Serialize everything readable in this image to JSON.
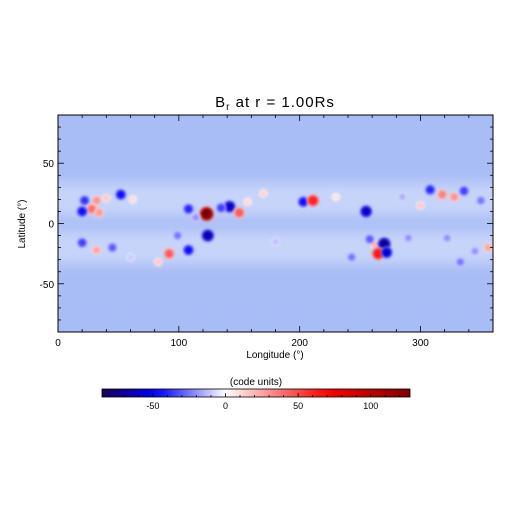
{
  "chart_data": {
    "type": "heatmap",
    "title": "B",
    "title_subscript": "r",
    "title_suffix": " at r = 1.00Rs",
    "xlabel": "Longitude (°)",
    "ylabel": "Latitude (°)",
    "xlim": [
      0,
      360
    ],
    "ylim": [
      -90,
      90
    ],
    "x_ticks": [
      0,
      100,
      200,
      300
    ],
    "y_ticks": [
      -50,
      0,
      50
    ],
    "colorbar": {
      "label": "(code units)",
      "range": [
        -85,
        127
      ],
      "ticks": [
        -50,
        0,
        50,
        100
      ],
      "colormap": [
        "#1a005a",
        "#0000ff",
        "#ffffff",
        "#ff0000",
        "#7f0000"
      ]
    },
    "background_color": "#a8bcf5",
    "band_color": "#c6d4fa",
    "features": [
      {
        "lon": 22,
        "lat": 19,
        "value": -38
      },
      {
        "lon": 28,
        "lat": 12,
        "value": 40
      },
      {
        "lon": 32,
        "lat": 19,
        "value": 30
      },
      {
        "lon": 20,
        "lat": 10,
        "value": -45
      },
      {
        "lon": 34,
        "lat": 9,
        "value": 28
      },
      {
        "lon": 52,
        "lat": 24,
        "value": -45
      },
      {
        "lon": 62,
        "lat": 20,
        "value": 10
      },
      {
        "lon": 40,
        "lat": 21,
        "value": 15
      },
      {
        "lon": 108,
        "lat": 12,
        "value": -40
      },
      {
        "lon": 123,
        "lat": 8,
        "value": 127
      },
      {
        "lon": 114,
        "lat": 5,
        "value": -20
      },
      {
        "lon": 142,
        "lat": 14,
        "value": -60
      },
      {
        "lon": 135,
        "lat": 13,
        "value": -35
      },
      {
        "lon": 150,
        "lat": 9,
        "value": 45
      },
      {
        "lon": 157,
        "lat": 18,
        "value": 10
      },
      {
        "lon": 124,
        "lat": -10,
        "value": -65
      },
      {
        "lon": 108,
        "lat": -22,
        "value": -45
      },
      {
        "lon": 92,
        "lat": -25,
        "value": 45
      },
      {
        "lon": 83,
        "lat": -32,
        "value": 15
      },
      {
        "lon": 99,
        "lat": -10,
        "value": -25
      },
      {
        "lon": 20,
        "lat": -16,
        "value": -35
      },
      {
        "lon": 45,
        "lat": -20,
        "value": -30
      },
      {
        "lon": 32,
        "lat": -22,
        "value": 25
      },
      {
        "lon": 60,
        "lat": -28,
        "value": -10
      },
      {
        "lon": 203,
        "lat": 18,
        "value": -45
      },
      {
        "lon": 211,
        "lat": 19,
        "value": 60
      },
      {
        "lon": 230,
        "lat": 22,
        "value": 8
      },
      {
        "lon": 262,
        "lat": -17,
        "value": 20
      },
      {
        "lon": 270,
        "lat": -17,
        "value": -70
      },
      {
        "lon": 265,
        "lat": -25,
        "value": 65
      },
      {
        "lon": 272,
        "lat": -24,
        "value": -55
      },
      {
        "lon": 258,
        "lat": -13,
        "value": -30
      },
      {
        "lon": 243,
        "lat": -28,
        "value": -25
      },
      {
        "lon": 255,
        "lat": 10,
        "value": -60
      },
      {
        "lon": 285,
        "lat": 22,
        "value": -15
      },
      {
        "lon": 290,
        "lat": -12,
        "value": -20
      },
      {
        "lon": 308,
        "lat": 28,
        "value": -40
      },
      {
        "lon": 318,
        "lat": 24,
        "value": 35
      },
      {
        "lon": 328,
        "lat": 22,
        "value": 30
      },
      {
        "lon": 336,
        "lat": 27,
        "value": -35
      },
      {
        "lon": 350,
        "lat": 19,
        "value": -25
      },
      {
        "lon": 356,
        "lat": -20,
        "value": 25
      },
      {
        "lon": 345,
        "lat": -23,
        "value": -20
      },
      {
        "lon": 333,
        "lat": -32,
        "value": -25
      },
      {
        "lon": 322,
        "lat": -12,
        "value": -20
      },
      {
        "lon": 300,
        "lat": 15,
        "value": 15
      },
      {
        "lon": 180,
        "lat": -15,
        "value": -12
      },
      {
        "lon": 170,
        "lat": 25,
        "value": 12
      }
    ]
  }
}
